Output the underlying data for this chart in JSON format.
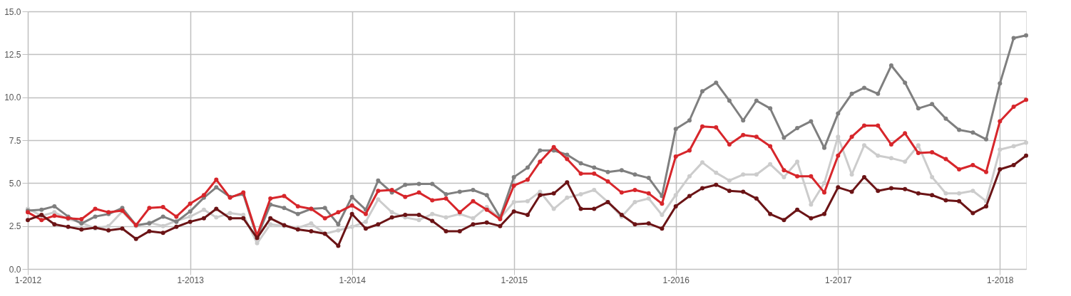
{
  "chart_data": {
    "type": "line",
    "x": [
      "2012-01",
      "2012-02",
      "2012-03",
      "2012-04",
      "2012-05",
      "2012-06",
      "2012-07",
      "2012-08",
      "2012-09",
      "2012-10",
      "2012-11",
      "2012-12",
      "2013-01",
      "2013-02",
      "2013-03",
      "2013-04",
      "2013-05",
      "2013-06",
      "2013-07",
      "2013-08",
      "2013-09",
      "2013-10",
      "2013-11",
      "2013-12",
      "2014-01",
      "2014-02",
      "2014-03",
      "2014-04",
      "2014-05",
      "2014-06",
      "2014-07",
      "2014-08",
      "2014-09",
      "2014-10",
      "2014-11",
      "2014-12",
      "2015-01",
      "2015-02",
      "2015-03",
      "2015-04",
      "2015-05",
      "2015-06",
      "2015-07",
      "2015-08",
      "2015-09",
      "2015-10",
      "2015-11",
      "2015-12",
      "2016-01",
      "2016-02",
      "2016-03",
      "2016-04",
      "2016-05",
      "2016-06",
      "2016-07",
      "2016-08",
      "2016-09",
      "2016-10",
      "2016-11",
      "2016-12",
      "2017-01",
      "2017-02",
      "2017-03",
      "2017-04",
      "2017-05",
      "2017-06",
      "2017-07",
      "2017-08",
      "2017-09",
      "2017-10",
      "2017-11",
      "2017-12",
      "2018-01",
      "2018-02",
      "2018-03"
    ],
    "series": [
      {
        "color": "#cccccc",
        "values": [
          3.5,
          3.1,
          3.3,
          2.9,
          2.7,
          2.35,
          2.5,
          3.35,
          2.5,
          2.7,
          2.5,
          2.8,
          3.05,
          3.45,
          3.0,
          3.25,
          3.15,
          1.5,
          2.6,
          2.5,
          2.4,
          2.65,
          2.05,
          2.25,
          2.45,
          2.75,
          4.05,
          3.3,
          3.0,
          2.85,
          3.2,
          3.0,
          3.2,
          2.95,
          3.6,
          2.95,
          3.9,
          3.95,
          4.5,
          3.5,
          4.15,
          4.35,
          4.6,
          3.9,
          3.05,
          3.9,
          4.1,
          3.15,
          4.3,
          5.4,
          6.2,
          5.6,
          5.15,
          5.5,
          5.5,
          6.1,
          5.35,
          6.25,
          3.75,
          5.0,
          7.7,
          5.5,
          7.2,
          6.6,
          6.45,
          6.25,
          7.2,
          5.35,
          4.4,
          4.4,
          4.55,
          3.95,
          6.95,
          7.15,
          7.35
        ]
      },
      {
        "color": "#7f7f7f",
        "values": [
          3.4,
          3.45,
          3.65,
          3.05,
          2.65,
          3.05,
          3.2,
          3.55,
          2.55,
          2.65,
          3.05,
          2.75,
          3.35,
          4.15,
          4.75,
          4.2,
          4.35,
          1.85,
          3.75,
          3.55,
          3.2,
          3.5,
          3.55,
          2.6,
          4.2,
          3.45,
          5.15,
          4.45,
          4.9,
          4.95,
          4.95,
          4.35,
          4.5,
          4.6,
          4.3,
          3.0,
          5.35,
          5.9,
          6.9,
          6.9,
          6.65,
          6.15,
          5.9,
          5.65,
          5.75,
          5.5,
          5.3,
          4.25,
          8.15,
          8.65,
          10.35,
          10.85,
          9.8,
          8.65,
          9.8,
          9.35,
          7.65,
          8.2,
          8.6,
          7.05,
          9.05,
          10.2,
          10.55,
          10.2,
          11.85,
          10.85,
          9.35,
          9.6,
          8.75,
          8.1,
          7.95,
          7.55,
          10.8,
          13.45,
          13.6
        ]
      },
      {
        "color": "#d7262b",
        "values": [
          3.3,
          2.85,
          3.1,
          2.95,
          2.9,
          3.5,
          3.3,
          3.4,
          2.55,
          3.55,
          3.6,
          3.05,
          3.8,
          4.3,
          5.2,
          4.15,
          4.45,
          1.95,
          4.1,
          4.25,
          3.65,
          3.5,
          2.95,
          3.3,
          3.7,
          3.2,
          4.55,
          4.6,
          4.2,
          4.45,
          4.0,
          4.1,
          3.3,
          3.95,
          3.45,
          2.9,
          4.85,
          5.2,
          6.25,
          7.1,
          6.4,
          5.55,
          5.55,
          5.1,
          4.45,
          4.6,
          4.4,
          3.8,
          6.55,
          6.9,
          8.3,
          8.25,
          7.25,
          7.8,
          7.7,
          7.15,
          5.75,
          5.4,
          5.4,
          4.45,
          6.6,
          7.7,
          8.35,
          8.35,
          7.25,
          7.9,
          6.75,
          6.8,
          6.4,
          5.8,
          6.05,
          5.65,
          8.6,
          9.45,
          9.85
        ]
      },
      {
        "color": "#6b1416",
        "values": [
          2.85,
          3.15,
          2.6,
          2.45,
          2.3,
          2.4,
          2.25,
          2.35,
          1.75,
          2.2,
          2.1,
          2.45,
          2.75,
          2.95,
          3.5,
          2.95,
          2.95,
          1.8,
          2.95,
          2.55,
          2.3,
          2.2,
          2.05,
          1.35,
          3.2,
          2.35,
          2.6,
          3.0,
          3.15,
          3.15,
          2.8,
          2.2,
          2.2,
          2.6,
          2.7,
          2.5,
          3.35,
          3.15,
          4.3,
          4.4,
          5.05,
          3.5,
          3.5,
          3.9,
          3.15,
          2.6,
          2.65,
          2.35,
          3.65,
          4.25,
          4.7,
          4.9,
          4.55,
          4.5,
          4.1,
          3.2,
          2.85,
          3.45,
          2.95,
          3.2,
          4.75,
          4.5,
          5.35,
          4.55,
          4.7,
          4.65,
          4.4,
          4.3,
          4.0,
          3.95,
          3.25,
          3.65,
          5.8,
          6.05,
          6.6
        ]
      }
    ],
    "xlim": [
      "2012-01",
      "2018-03"
    ],
    "xticks": [
      {
        "value": "2012-01",
        "label": "1-2012"
      },
      {
        "value": "2013-01",
        "label": "1-2013"
      },
      {
        "value": "2014-01",
        "label": "1-2014"
      },
      {
        "value": "2015-01",
        "label": "1-2015"
      },
      {
        "value": "2016-01",
        "label": "1-2016"
      },
      {
        "value": "2017-01",
        "label": "1-2017"
      },
      {
        "value": "2018-01",
        "label": "1-2018"
      }
    ],
    "ylim": [
      0,
      15
    ],
    "yticks": [
      {
        "value": 0,
        "label": "0.0"
      },
      {
        "value": 2.5,
        "label": "2.5"
      },
      {
        "value": 5,
        "label": "5.0"
      },
      {
        "value": 7.5,
        "label": "7.5"
      },
      {
        "value": 10,
        "label": "10.0"
      },
      {
        "value": 12.5,
        "label": "12.5"
      },
      {
        "value": 15,
        "label": "15.0"
      }
    ],
    "grid": true,
    "marker": "circle",
    "line_style": "solid"
  }
}
